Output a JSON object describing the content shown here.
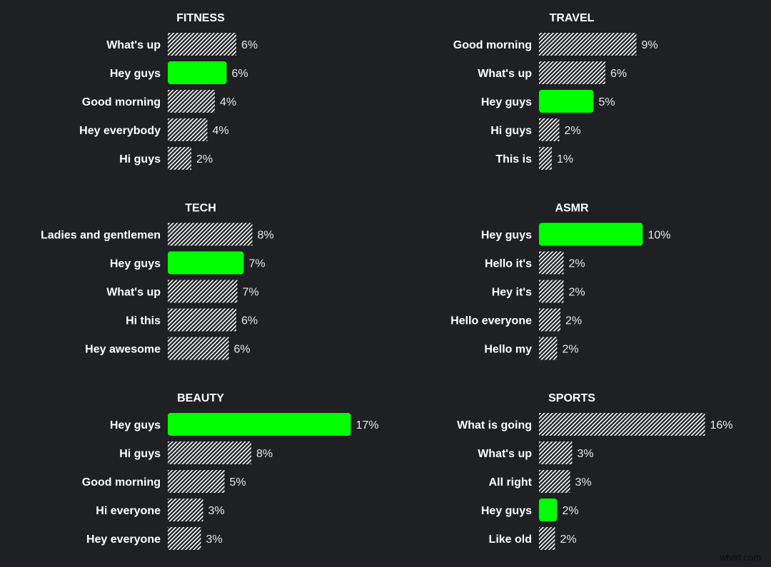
{
  "chart_data": [
    {
      "type": "bar",
      "orientation": "horizontal",
      "title": "FITNESS",
      "categories": [
        "What's up",
        "Hey guys",
        "Good morning",
        "Hey everybody",
        "Hi guys"
      ],
      "values": [
        6.4,
        5.5,
        4.4,
        3.7,
        2.2
      ],
      "labels": [
        "6%",
        "6%",
        "4%",
        "4%",
        "2%"
      ],
      "highlight": "Hey guys"
    },
    {
      "type": "bar",
      "orientation": "horizontal",
      "title": "TRAVEL",
      "categories": [
        "Good morning",
        "What's up",
        "Hey guys",
        "Hi guys",
        "This is"
      ],
      "values": [
        9.1,
        6.2,
        5.1,
        1.9,
        1.2
      ],
      "labels": [
        "9%",
        "6%",
        "5%",
        "2%",
        "1%"
      ],
      "highlight": "Hey guys"
    },
    {
      "type": "bar",
      "orientation": "horizontal",
      "title": "TECH",
      "categories": [
        "Ladies and gentlemen",
        "Hey guys",
        "What's up",
        "Hi this",
        "Hey awesome"
      ],
      "values": [
        7.9,
        7.1,
        6.5,
        6.4,
        5.7
      ],
      "labels": [
        "8%",
        "7%",
        "7%",
        "6%",
        "6%"
      ],
      "highlight": "Hey guys"
    },
    {
      "type": "bar",
      "orientation": "horizontal",
      "title": "ASMR",
      "categories": [
        "Hey guys",
        "Hello it's",
        "Hey it's",
        "Hello everyone",
        "Hello my"
      ],
      "values": [
        9.7,
        2.3,
        2.3,
        2.0,
        1.7
      ],
      "labels": [
        "10%",
        "2%",
        "2%",
        "2%",
        "2%"
      ],
      "highlight": "Hey guys"
    },
    {
      "type": "bar",
      "orientation": "horizontal",
      "title": "BEAUTY",
      "categories": [
        "Hey guys",
        "Hi guys",
        "Good morning",
        "Hi everyone",
        "Hey everyone"
      ],
      "values": [
        17.1,
        7.8,
        5.3,
        3.3,
        3.1
      ],
      "labels": [
        "17%",
        "8%",
        "5%",
        "3%",
        "3%"
      ],
      "highlight": "Hey guys"
    },
    {
      "type": "bar",
      "orientation": "horizontal",
      "title": "SPORTS",
      "categories": [
        "What is going",
        "What's up",
        "All right",
        "Hey guys",
        "Like old"
      ],
      "values": [
        15.5,
        3.1,
        2.9,
        1.7,
        1.5
      ],
      "labels": [
        "16%",
        "3%",
        "3%",
        "2%",
        "2%"
      ],
      "highlight": "Hey guys"
    }
  ],
  "colors": {
    "background": "#1f2024",
    "highlight": "#00ff00",
    "hatch": "#ffffff"
  },
  "watermark": "wtvid.com"
}
